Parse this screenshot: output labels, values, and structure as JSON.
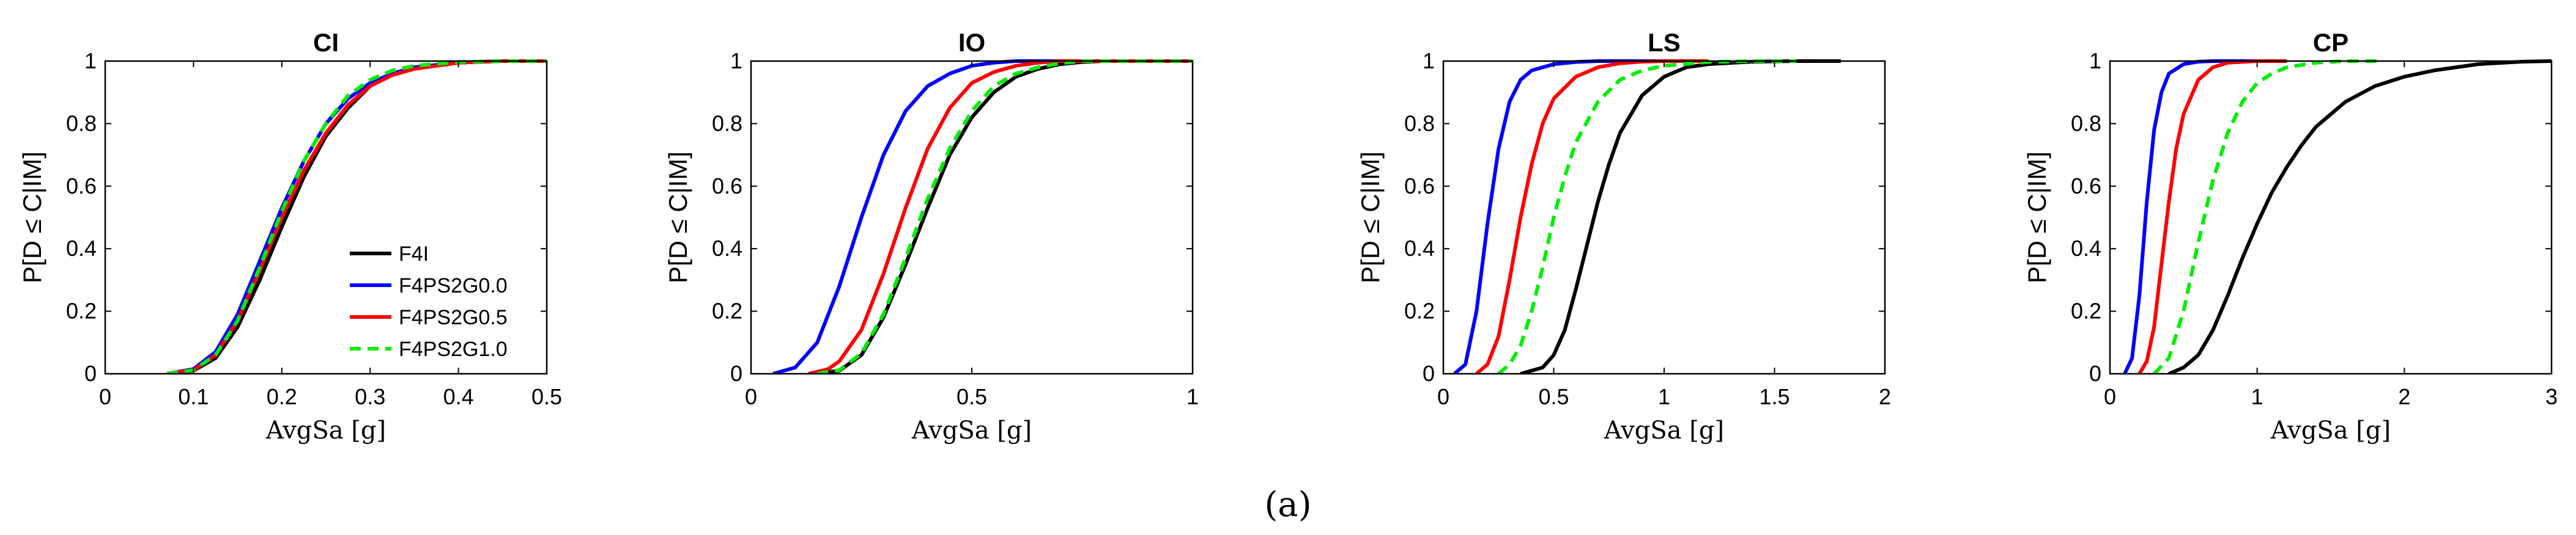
{
  "figure_caption": "(a)",
  "colors": {
    "F4I": "#000000",
    "F4PS2G0.0": "#0000ff",
    "F4PS2G0.5": "#ff0000",
    "F4PS2G1.0": "#00ee00"
  },
  "chart_data": [
    {
      "type": "line",
      "title": "CI",
      "xlabel": "AvgSa [g]",
      "ylabel": "P[D ≤ C|IM]",
      "xlim": [
        0,
        0.5
      ],
      "ylim": [
        0,
        1
      ],
      "xticks": [
        0,
        0.1,
        0.2,
        0.3,
        0.4,
        0.5
      ],
      "xtick_labels": [
        "0",
        "0.1",
        "0.2",
        "0.3",
        "0.4",
        "0.5"
      ],
      "yticks": [
        0,
        0.2,
        0.4,
        0.6,
        0.8,
        1
      ],
      "ytick_labels": [
        "0",
        "0.2",
        "0.4",
        "0.6",
        "0.8",
        "1"
      ],
      "legend": {
        "location": "bottom-right",
        "entries": [
          "F4I",
          "F4PS2G0.0",
          "F4PS2G0.5",
          "F4PS2G1.0"
        ]
      },
      "series": [
        {
          "name": "F4I",
          "color": "#000000",
          "dash": "solid",
          "x": [
            0.07,
            0.1,
            0.125,
            0.15,
            0.175,
            0.2,
            0.225,
            0.25,
            0.275,
            0.3,
            0.325,
            0.35,
            0.4,
            0.45,
            0.5
          ],
          "y": [
            0,
            0.01,
            0.05,
            0.15,
            0.3,
            0.47,
            0.63,
            0.76,
            0.85,
            0.92,
            0.96,
            0.98,
            0.995,
            1,
            1
          ]
        },
        {
          "name": "F4PS2G0.0",
          "color": "#0000ff",
          "dash": "solid",
          "x": [
            0.07,
            0.1,
            0.125,
            0.15,
            0.175,
            0.2,
            0.225,
            0.25,
            0.275,
            0.3,
            0.325,
            0.35,
            0.4,
            0.45,
            0.5
          ],
          "y": [
            0,
            0.015,
            0.07,
            0.19,
            0.36,
            0.53,
            0.68,
            0.8,
            0.88,
            0.93,
            0.96,
            0.98,
            0.995,
            1,
            1
          ]
        },
        {
          "name": "F4PS2G0.5",
          "color": "#ff0000",
          "dash": "solid",
          "x": [
            0.07,
            0.1,
            0.125,
            0.15,
            0.175,
            0.2,
            0.225,
            0.25,
            0.275,
            0.3,
            0.325,
            0.35,
            0.4,
            0.45,
            0.5
          ],
          "y": [
            0,
            0.012,
            0.06,
            0.17,
            0.33,
            0.5,
            0.65,
            0.77,
            0.86,
            0.92,
            0.955,
            0.975,
            0.995,
            1,
            1
          ]
        },
        {
          "name": "F4PS2G1.0",
          "color": "#00ee00",
          "dash": "dashed",
          "x": [
            0.07,
            0.1,
            0.125,
            0.15,
            0.175,
            0.2,
            0.225,
            0.25,
            0.275,
            0.3,
            0.325,
            0.35,
            0.4,
            0.45,
            0.5
          ],
          "y": [
            0,
            0.012,
            0.06,
            0.17,
            0.34,
            0.52,
            0.68,
            0.8,
            0.89,
            0.94,
            0.97,
            0.985,
            0.997,
            1,
            1
          ]
        }
      ]
    },
    {
      "type": "line",
      "title": "IO",
      "xlabel": "AvgSa [g]",
      "ylabel": "P[D ≤ C|IM]",
      "xlim": [
        0,
        1
      ],
      "ylim": [
        0,
        1
      ],
      "xticks": [
        0,
        0.5,
        1
      ],
      "xtick_labels": [
        "0",
        "0.5",
        "1"
      ],
      "yticks": [
        0,
        0.2,
        0.4,
        0.6,
        0.8,
        1
      ],
      "ytick_labels": [
        "0",
        "0.2",
        "0.4",
        "0.6",
        "0.8",
        "1"
      ],
      "series": [
        {
          "name": "F4I",
          "color": "#000000",
          "dash": "solid",
          "x": [
            0.15,
            0.2,
            0.25,
            0.3,
            0.35,
            0.4,
            0.45,
            0.5,
            0.55,
            0.6,
            0.65,
            0.7,
            0.75,
            0.8,
            1
          ],
          "y": [
            0,
            0.01,
            0.06,
            0.18,
            0.35,
            0.53,
            0.7,
            0.82,
            0.9,
            0.95,
            0.975,
            0.99,
            0.997,
            1,
            1
          ]
        },
        {
          "name": "F4PS2G0.0",
          "color": "#0000ff",
          "dash": "solid",
          "x": [
            0.05,
            0.1,
            0.15,
            0.2,
            0.25,
            0.3,
            0.35,
            0.4,
            0.45,
            0.5,
            0.55,
            0.6,
            0.65,
            0.7,
            1
          ],
          "y": [
            0,
            0.02,
            0.1,
            0.28,
            0.5,
            0.7,
            0.84,
            0.92,
            0.96,
            0.985,
            0.995,
            1,
            1,
            1,
            1
          ]
        },
        {
          "name": "F4PS2G0.5",
          "color": "#ff0000",
          "dash": "solid",
          "x": [
            0.13,
            0.175,
            0.2,
            0.25,
            0.3,
            0.35,
            0.4,
            0.45,
            0.5,
            0.55,
            0.6,
            0.65,
            0.7,
            0.75,
            1
          ],
          "y": [
            0,
            0.015,
            0.04,
            0.14,
            0.32,
            0.53,
            0.72,
            0.85,
            0.93,
            0.965,
            0.985,
            0.995,
            1,
            1,
            1
          ]
        },
        {
          "name": "F4PS2G1.0",
          "color": "#00ee00",
          "dash": "dashed",
          "x": [
            0.15,
            0.2,
            0.25,
            0.3,
            0.35,
            0.4,
            0.45,
            0.5,
            0.55,
            0.6,
            0.65,
            0.7,
            0.75,
            0.8,
            1
          ],
          "y": [
            0,
            0.012,
            0.065,
            0.19,
            0.37,
            0.56,
            0.72,
            0.84,
            0.92,
            0.96,
            0.98,
            0.993,
            1,
            1,
            1
          ]
        }
      ]
    },
    {
      "type": "line",
      "title": "LS",
      "xlabel": "AvgSa [g]",
      "ylabel": "P[D ≤ C|IM]",
      "xlim": [
        0,
        2
      ],
      "ylim": [
        0,
        1
      ],
      "xticks": [
        0,
        0.5,
        1,
        1.5,
        2
      ],
      "xtick_labels": [
        "0",
        "0.5",
        "1",
        "1.5",
        "2"
      ],
      "yticks": [
        0,
        0.2,
        0.4,
        0.6,
        0.8,
        1
      ],
      "ytick_labels": [
        "0",
        "0.2",
        "0.4",
        "0.6",
        "0.8",
        "1"
      ],
      "series": [
        {
          "name": "F4I",
          "color": "#000000",
          "dash": "solid",
          "x": [
            0.35,
            0.45,
            0.5,
            0.55,
            0.6,
            0.65,
            0.7,
            0.75,
            0.8,
            0.9,
            1.0,
            1.1,
            1.2,
            1.4,
            1.6,
            1.8
          ],
          "y": [
            0,
            0.02,
            0.06,
            0.14,
            0.27,
            0.41,
            0.55,
            0.67,
            0.77,
            0.89,
            0.95,
            0.98,
            0.99,
            0.998,
            1,
            1
          ]
        },
        {
          "name": "F4PS2G0.0",
          "color": "#0000ff",
          "dash": "solid",
          "x": [
            0.05,
            0.1,
            0.15,
            0.2,
            0.25,
            0.3,
            0.35,
            0.4,
            0.5,
            0.6,
            0.7,
            0.8,
            1.0
          ],
          "y": [
            0,
            0.03,
            0.2,
            0.48,
            0.72,
            0.87,
            0.94,
            0.97,
            0.99,
            0.997,
            1,
            1,
            1
          ]
        },
        {
          "name": "F4PS2G0.5",
          "color": "#ff0000",
          "dash": "solid",
          "x": [
            0.15,
            0.2,
            0.25,
            0.3,
            0.35,
            0.4,
            0.45,
            0.5,
            0.6,
            0.7,
            0.8,
            0.9,
            1.0,
            1.2
          ],
          "y": [
            0,
            0.03,
            0.12,
            0.3,
            0.5,
            0.67,
            0.8,
            0.88,
            0.95,
            0.98,
            0.993,
            0.998,
            1,
            1
          ]
        },
        {
          "name": "F4PS2G1.0",
          "color": "#00ee00",
          "dash": "dashed",
          "x": [
            0.25,
            0.3,
            0.35,
            0.4,
            0.45,
            0.5,
            0.55,
            0.6,
            0.7,
            0.8,
            0.9,
            1.0,
            1.2,
            1.4,
            1.6
          ],
          "y": [
            0,
            0.03,
            0.09,
            0.2,
            0.34,
            0.5,
            0.63,
            0.74,
            0.87,
            0.94,
            0.97,
            0.985,
            0.997,
            1,
            1
          ]
        }
      ]
    },
    {
      "type": "line",
      "title": "CP",
      "xlabel": "AvgSa [g]",
      "ylabel": "P[D ≤ C|IM]",
      "xlim": [
        0,
        3
      ],
      "ylim": [
        0,
        1
      ],
      "xticks": [
        0,
        1,
        2,
        3
      ],
      "xtick_labels": [
        "0",
        "1",
        "2",
        "3"
      ],
      "yticks": [
        0,
        0.2,
        0.4,
        0.6,
        0.8,
        1
      ],
      "ytick_labels": [
        "0",
        "0.2",
        "0.4",
        "0.6",
        "0.8",
        "1"
      ],
      "series": [
        {
          "name": "F4I",
          "color": "#000000",
          "dash": "solid",
          "x": [
            0.4,
            0.5,
            0.6,
            0.7,
            0.8,
            0.9,
            1.0,
            1.1,
            1.2,
            1.3,
            1.4,
            1.6,
            1.8,
            2.0,
            2.2,
            2.5,
            2.8,
            3.0
          ],
          "y": [
            0,
            0.02,
            0.06,
            0.14,
            0.25,
            0.37,
            0.48,
            0.58,
            0.66,
            0.73,
            0.79,
            0.87,
            0.92,
            0.95,
            0.97,
            0.99,
            0.998,
            1
          ]
        },
        {
          "name": "F4PS2G0.0",
          "color": "#0000ff",
          "dash": "solid",
          "x": [
            0.1,
            0.15,
            0.2,
            0.25,
            0.3,
            0.35,
            0.4,
            0.5,
            0.6,
            0.7,
            0.8,
            1.0
          ],
          "y": [
            0,
            0.05,
            0.25,
            0.55,
            0.78,
            0.9,
            0.96,
            0.99,
            0.998,
            1,
            1,
            1
          ]
        },
        {
          "name": "F4PS2G0.5",
          "color": "#ff0000",
          "dash": "solid",
          "x": [
            0.2,
            0.25,
            0.3,
            0.35,
            0.4,
            0.45,
            0.5,
            0.6,
            0.7,
            0.8,
            1.0,
            1.2
          ],
          "y": [
            0,
            0.04,
            0.15,
            0.35,
            0.55,
            0.72,
            0.83,
            0.94,
            0.98,
            0.995,
            1,
            1
          ]
        },
        {
          "name": "F4PS2G1.0",
          "color": "#00ee00",
          "dash": "dashed",
          "x": [
            0.3,
            0.4,
            0.5,
            0.6,
            0.7,
            0.8,
            0.9,
            1.0,
            1.1,
            1.2,
            1.4,
            1.6,
            1.85
          ],
          "y": [
            0,
            0.05,
            0.2,
            0.42,
            0.62,
            0.77,
            0.87,
            0.93,
            0.96,
            0.98,
            0.995,
            1,
            1
          ]
        }
      ]
    }
  ]
}
